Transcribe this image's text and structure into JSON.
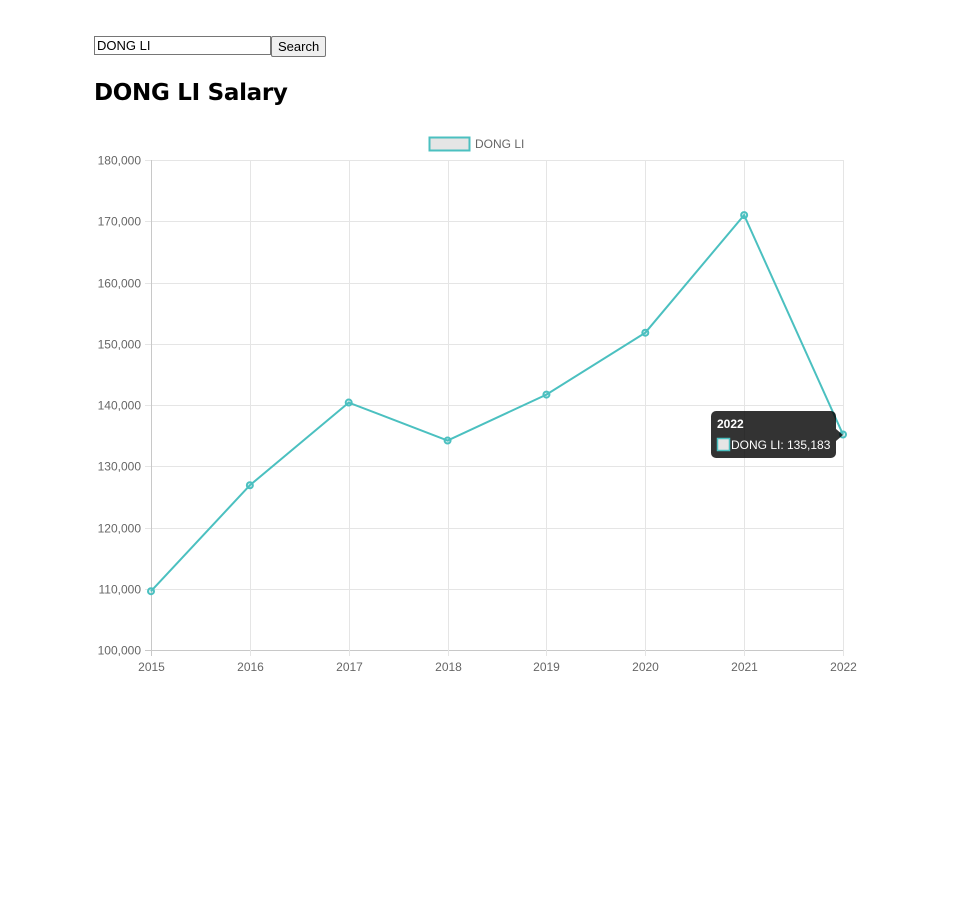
{
  "search": {
    "value": "DONG LI",
    "button_label": "Search"
  },
  "page": {
    "title": "DONG LI Salary"
  },
  "colors": {
    "series_line": "#4bc0c0",
    "legend_fill": "#e5e5e5",
    "grid": "#e5e5e5",
    "axis": "#c8c8c8",
    "tick_text": "#666666",
    "tooltip_bg": "#000000cc"
  },
  "chart_data": {
    "type": "line",
    "title": "",
    "xlabel": "",
    "ylabel": "",
    "categories": [
      "2015",
      "2016",
      "2017",
      "2018",
      "2019",
      "2020",
      "2021",
      "2022"
    ],
    "series": [
      {
        "name": "DONG LI",
        "values": [
          109600,
          126900,
          140400,
          134200,
          141700,
          151800,
          171000,
          135183
        ]
      }
    ],
    "ylim": [
      100000,
      180000
    ],
    "y_ticks": [
      "180,000",
      "170,000",
      "160,000",
      "150,000",
      "140,000",
      "130,000",
      "120,000",
      "110,000",
      "100,000"
    ],
    "grid": true,
    "legend_position": "top",
    "tooltip": {
      "title": "2022",
      "label": "DONG LI: 135,183"
    }
  }
}
